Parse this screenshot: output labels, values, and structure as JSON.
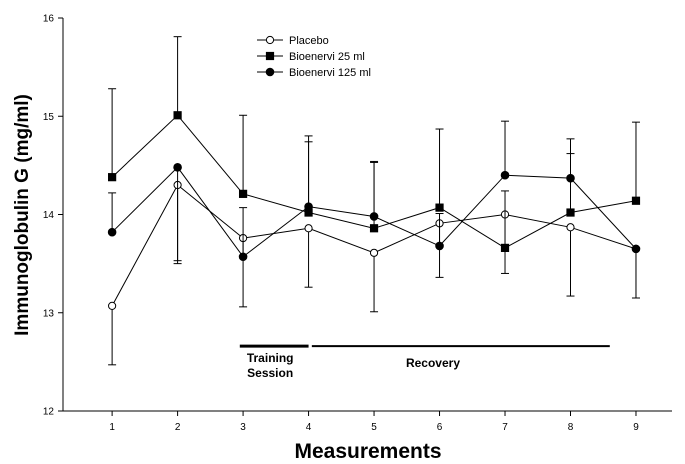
{
  "chart_data": {
    "type": "line",
    "xlabel": "Measurements",
    "ylabel": "Immunoglobulin G (mg/ml)",
    "x": [
      1,
      2,
      3,
      4,
      5,
      6,
      7,
      8,
      9
    ],
    "xlim": [
      0.25,
      9.55
    ],
    "ylim": [
      12,
      16
    ],
    "yticks": [
      12,
      13,
      14,
      15,
      16
    ],
    "grid": false,
    "legend_position": "top-center",
    "series": [
      {
        "name": "Placebo",
        "marker": "open-circle",
        "values": [
          13.07,
          14.3,
          13.76,
          13.86,
          13.61,
          13.91,
          14.0,
          13.87,
          13.65
        ],
        "error": [
          0.6,
          0.8,
          0.7,
          0.6,
          0.6,
          0.55,
          0.6,
          0.7,
          0.5
        ],
        "error_dir": [
          "down",
          "down",
          "down",
          "down",
          "down",
          "down",
          "down",
          "down",
          "down"
        ]
      },
      {
        "name": "Bioenervi 25 ml",
        "marker": "filled-square",
        "values": [
          14.38,
          15.01,
          14.21,
          14.02,
          13.86,
          14.07,
          13.66,
          14.02,
          14.14
        ],
        "error": [
          0.9,
          0.8,
          0.8,
          0.72,
          0.68,
          0.8,
          0.58,
          0.75,
          0.8
        ],
        "error_dir": [
          "up",
          "up",
          "up",
          "up",
          "up",
          "up",
          "up",
          "up",
          "up"
        ]
      },
      {
        "name": "Bioenervi 125 ml",
        "marker": "filled-circle",
        "values": [
          13.82,
          14.48,
          13.57,
          14.08,
          13.98,
          13.68,
          14.4,
          14.37,
          13.65
        ],
        "error": [
          0.4,
          0.95,
          0.5,
          0.72,
          0.55,
          0.33,
          0.55,
          0.25,
          0.5
        ],
        "error_dir": [
          "up",
          "down",
          "up",
          "up",
          "up",
          "up",
          "up",
          "up",
          "down"
        ]
      }
    ],
    "annotations": [
      {
        "text_lines": [
          "Training",
          "Session"
        ],
        "x_start": 2.95,
        "x_end": 4.0
      },
      {
        "text_lines": [
          "Recovery"
        ],
        "x_start": 4.05,
        "x_end": 8.6
      }
    ]
  }
}
